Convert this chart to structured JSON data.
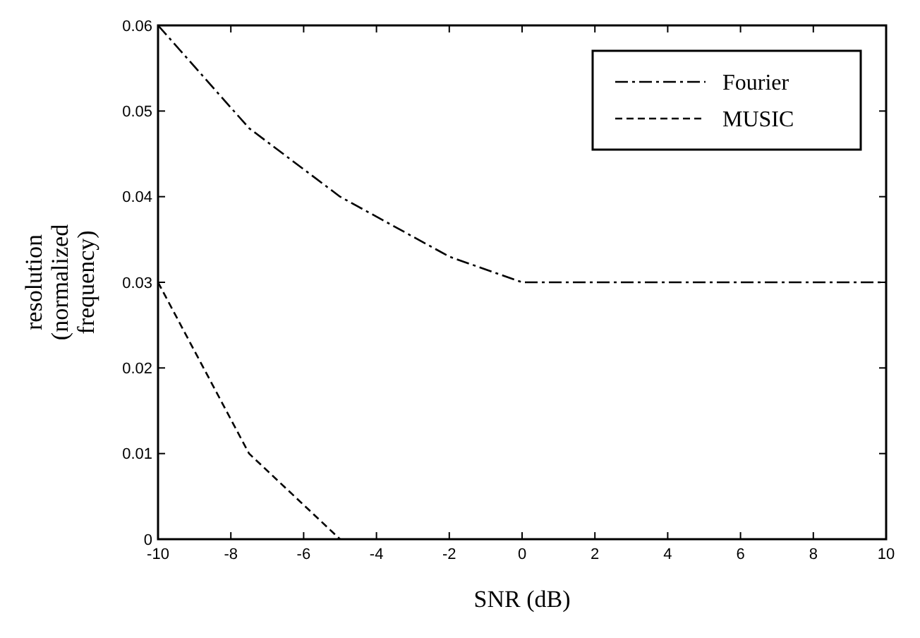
{
  "chart_data": {
    "type": "line",
    "xlabel": "SNR (dB)",
    "ylabel": "resolution\n(normalized\nfrequency)",
    "xlim": [
      -10,
      10
    ],
    "xticks": [
      -10,
      -8,
      -6,
      -4,
      -2,
      0,
      2,
      4,
      6,
      8,
      10
    ],
    "ylim": [
      0,
      0.06
    ],
    "yticks": [
      0,
      0.01,
      0.02,
      0.03,
      0.04,
      0.05,
      0.06
    ],
    "grid": false,
    "legend": "top right",
    "series": [
      {
        "name": "Fourier",
        "color": "#000000",
        "line_style": "dashdot",
        "x": [
          -10,
          -7.5,
          -5,
          -2,
          0,
          10
        ],
        "values": [
          0.06,
          0.048,
          0.04,
          0.033,
          0.03,
          0.03
        ]
      },
      {
        "name": "MUSIC",
        "color": "#000000",
        "line_style": "dashed",
        "x": [
          -10,
          -7.5,
          -5
        ],
        "values": [
          0.03,
          0.01,
          0
        ]
      }
    ]
  }
}
